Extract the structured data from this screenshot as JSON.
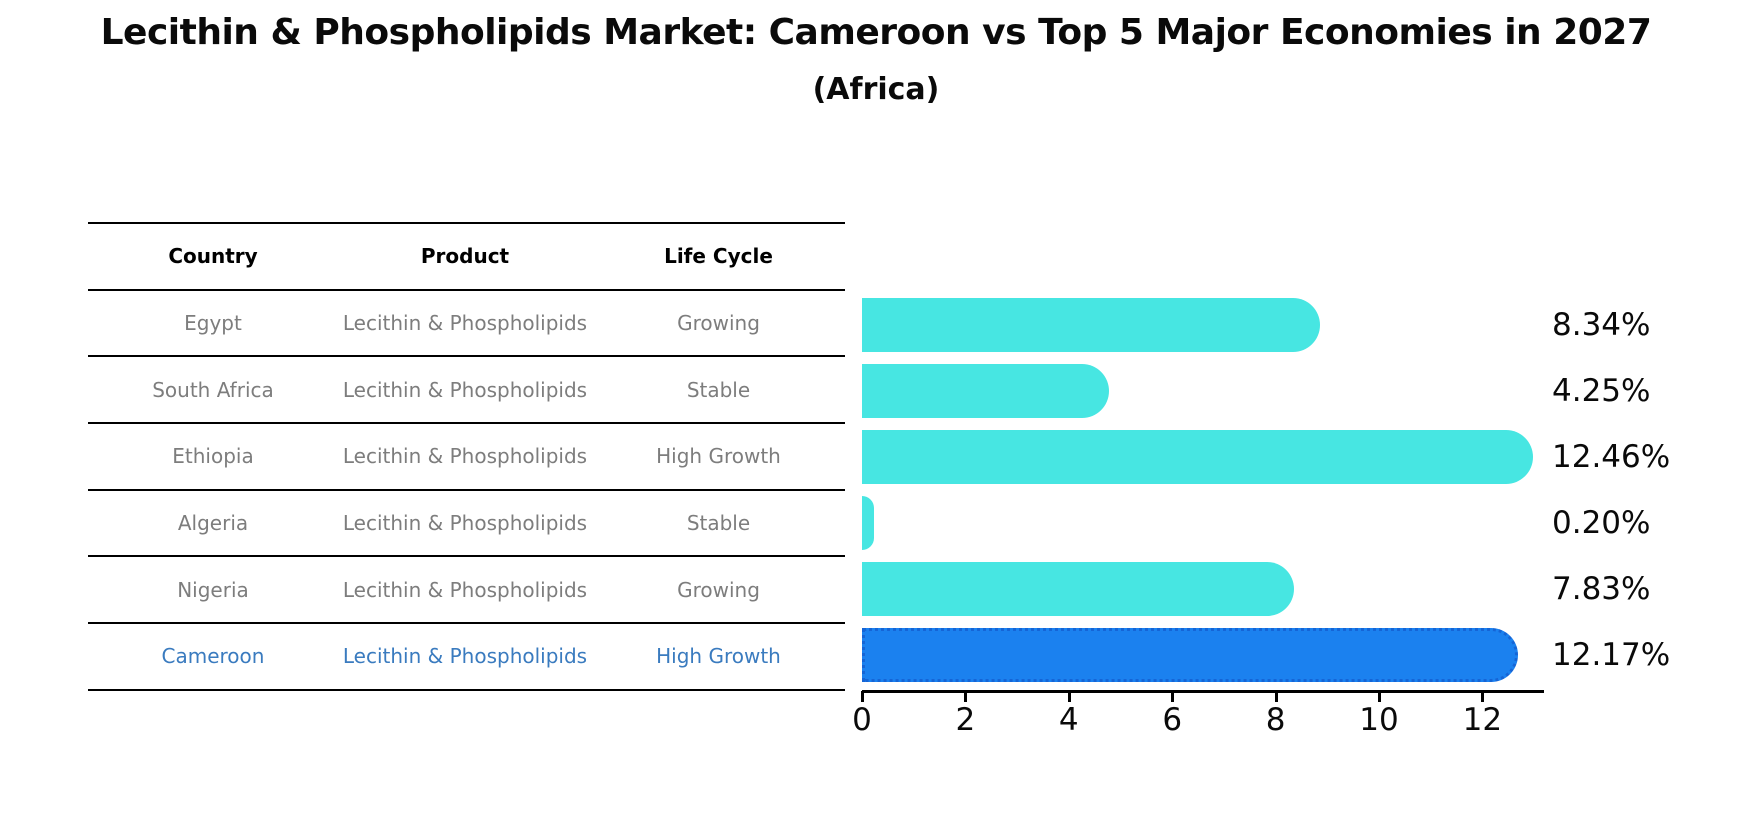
{
  "title": "Lecithin & Phospholipids Market: Cameroon vs Top 5 Major Economies in 2027",
  "subtitle": "(Africa)",
  "table": {
    "columns": [
      "Country",
      "Product",
      "Life Cycle"
    ],
    "rows": [
      {
        "country": "Egypt",
        "product": "Lecithin & Phospholipids",
        "life_cycle": "Growing"
      },
      {
        "country": "South Africa",
        "product": "Lecithin & Phospholipids",
        "life_cycle": "Stable"
      },
      {
        "country": "Ethiopia",
        "product": "Lecithin & Phospholipids",
        "life_cycle": "High Growth"
      },
      {
        "country": "Algeria",
        "product": "Lecithin & Phospholipids",
        "life_cycle": "Stable"
      },
      {
        "country": "Nigeria",
        "product": "Lecithin & Phospholipids",
        "life_cycle": "Growing"
      },
      {
        "country": "Cameroon",
        "product": "Lecithin & Phospholipids",
        "life_cycle": "High Growth"
      }
    ],
    "highlight_row": "Cameroon"
  },
  "chart_data": {
    "type": "bar",
    "orientation": "horizontal",
    "title": "Lecithin & Phospholipids Market: Cameroon vs Top 5 Major Economies in 2027 (Africa)",
    "categories": [
      "Egypt",
      "South Africa",
      "Ethiopia",
      "Algeria",
      "Nigeria",
      "Cameroon"
    ],
    "values": [
      8.34,
      4.25,
      12.46,
      0.2,
      7.83,
      12.17
    ],
    "value_labels": [
      "8.34%",
      "4.25%",
      "12.46%",
      "0.20%",
      "7.83%",
      "12.17%"
    ],
    "unit": "percent CAGR",
    "xticks": [
      0,
      2,
      4,
      6,
      8,
      10,
      12
    ],
    "xlim": [
      0,
      13.2
    ],
    "grid": false,
    "legend": false,
    "bar_color": "#47e6e2",
    "highlight_index": 5,
    "highlight_color": "#1b81ef",
    "highlight_border_color": "#1565d6",
    "highlight_text_color": "#3a7bbf"
  }
}
